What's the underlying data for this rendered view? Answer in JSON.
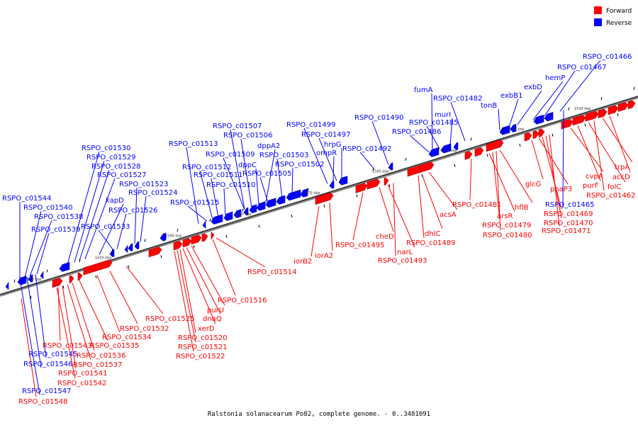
{
  "legend": {
    "forward_label": "Forward",
    "reverse_label": "Reverse",
    "forward_color": "#ff0000",
    "reverse_color": "#0000ff"
  },
  "caption": "Ralstonia solanacearum Po82, complete genome. - 0..3481091",
  "scale_ticks": [
    "1610 kbp",
    "1600 kbp",
    "1590 kbp",
    "1580 kbp",
    "1570 kbp",
    "1560 kbp",
    "1550 kbp",
    "1540 kbp",
    "1530 kbp"
  ],
  "reverse_genes": [
    "RSPO_c01544",
    "RSPO_c01540",
    "RSPO_c01538",
    "RSPO_c01539",
    "RSPO_c01530",
    "RSPO_c01529",
    "RSPO_c01528",
    "RSPO_c01527",
    "kapD",
    "RSPO_c01523",
    "RSPO_c01524",
    "RSPO_c01526",
    "RSPO_c01533",
    "RSPO_c01513",
    "RSPO_c01512",
    "RSPO_c01511",
    "RSPO_c01510",
    "RSPO_c01515",
    "RSPO_c01507",
    "RSPO_c01506",
    "RSPO_c01509",
    "dppA2",
    "dppC",
    "RSPO_c01505",
    "RSPO_c01503",
    "RSPO_c01502",
    "RSPO_c01499",
    "RSPO_c01497",
    "hrpG",
    "ompR",
    "RSPO_c01492",
    "RSPO_c01490",
    "fumA",
    "RSPO_c01482",
    "murI",
    "RSPO_c01485",
    "RSPO_c01486",
    "tonB",
    "exbB1",
    "exbD",
    "hemP",
    "RSPO_c01467",
    "RSPO_c01466",
    "RSPO_c01465",
    "RSPO_c01545",
    "RSPO_c01546",
    "RSPO_c01547"
  ],
  "forward_genes": [
    "RSPO_c01514",
    "RSPO_c01516",
    "iorB2",
    "iorA2",
    "RSPO_c01495",
    "cheD",
    "narL",
    "RSPO_c01493",
    "dhlC",
    "RSPO_c01489",
    "acsA",
    "RSPO_c01481",
    "arsR",
    "RSPO_c01479",
    "RSPO_c01480",
    "hflB",
    "glcG",
    "phaP3",
    "RSPO_c01469",
    "RSPO_c01470",
    "RSPO_c01471",
    "cvpA",
    "purF",
    "folC",
    "RSPO_c01462",
    "trpA",
    "accD",
    "RSPO_c01525",
    "RSPO_c01532",
    "RSPO_c01534",
    "purU",
    "dnaQ",
    "xerD",
    "RSPO_c01520",
    "RSPO_c01521",
    "RSPO_c01522",
    "RSPO_c01543",
    "RSPO_c01535",
    "RSPO_c01536",
    "RSPO_c01537",
    "RSPO_c01541",
    "RSPO_c01542",
    "RSPO_c01548"
  ]
}
